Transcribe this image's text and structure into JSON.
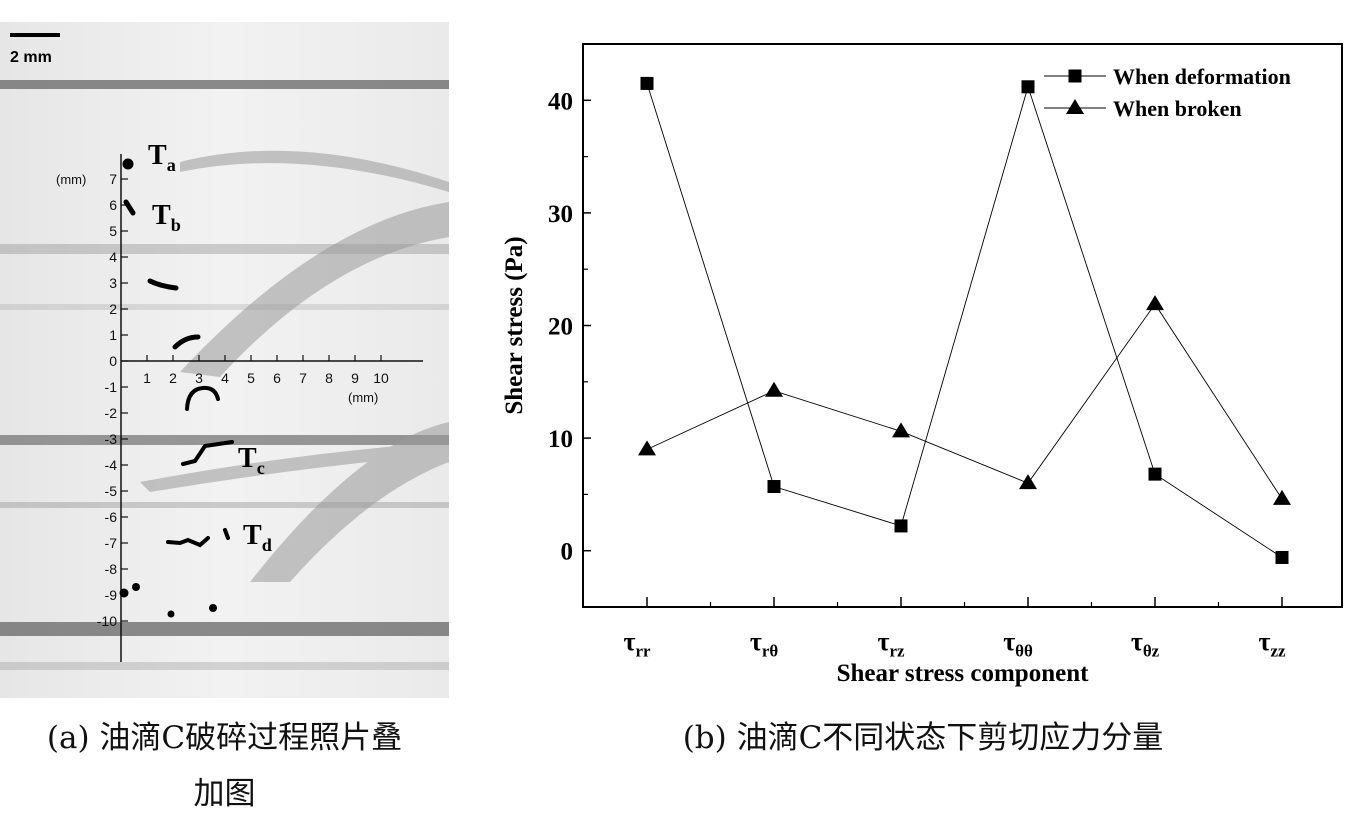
{
  "photo_panel": {
    "scale_bar_label": "2 mm",
    "y_unit": "(mm)",
    "x_unit": "(mm)",
    "x_ticks": [
      "1",
      "2",
      "3",
      "4",
      "5",
      "6",
      "7",
      "8",
      "9",
      "10"
    ],
    "y_ticks": [
      "7",
      "6",
      "5",
      "4",
      "3",
      "2",
      "1",
      "0",
      "-1",
      "-2",
      "-3",
      "-4",
      "-5",
      "-6",
      "-7",
      "-8",
      "-9",
      "-10"
    ],
    "labels": [
      {
        "main": "T",
        "sub": "a"
      },
      {
        "main": "T",
        "sub": "b"
      },
      {
        "main": "T",
        "sub": "c"
      },
      {
        "main": "T",
        "sub": "d"
      }
    ],
    "caption_line1": "(a) 油滴C破碎过程照片叠",
    "caption_line2": "加图"
  },
  "chart_data": {
    "type": "line",
    "categories": [
      "τrr",
      "τrθ",
      "τrz",
      "τθθ",
      "τθz",
      "τzz"
    ],
    "category_labels": [
      {
        "main": "τ",
        "sub": "rr"
      },
      {
        "main": "τ",
        "sub": "rθ"
      },
      {
        "main": "τ",
        "sub": "rz"
      },
      {
        "main": "τ",
        "sub": "θθ"
      },
      {
        "main": "τ",
        "sub": "θz"
      },
      {
        "main": "τ",
        "sub": "zz"
      }
    ],
    "series": [
      {
        "name": "When deformation",
        "marker": "square",
        "values": [
          41.5,
          5.7,
          2.2,
          41.2,
          6.8,
          -0.6
        ]
      },
      {
        "name": "When broken",
        "marker": "triangle",
        "values": [
          9.0,
          14.2,
          10.6,
          6.0,
          21.9,
          4.6
        ]
      }
    ],
    "xlabel": "Shear stress component",
    "ylabel": "Shear stress (Pa)",
    "ylim": [
      -5,
      45
    ],
    "y_ticks": [
      0,
      10,
      20,
      30,
      40
    ],
    "grid": false,
    "legend": "top-right",
    "caption": "(b) 油滴C不同状态下剪切应力分量"
  }
}
